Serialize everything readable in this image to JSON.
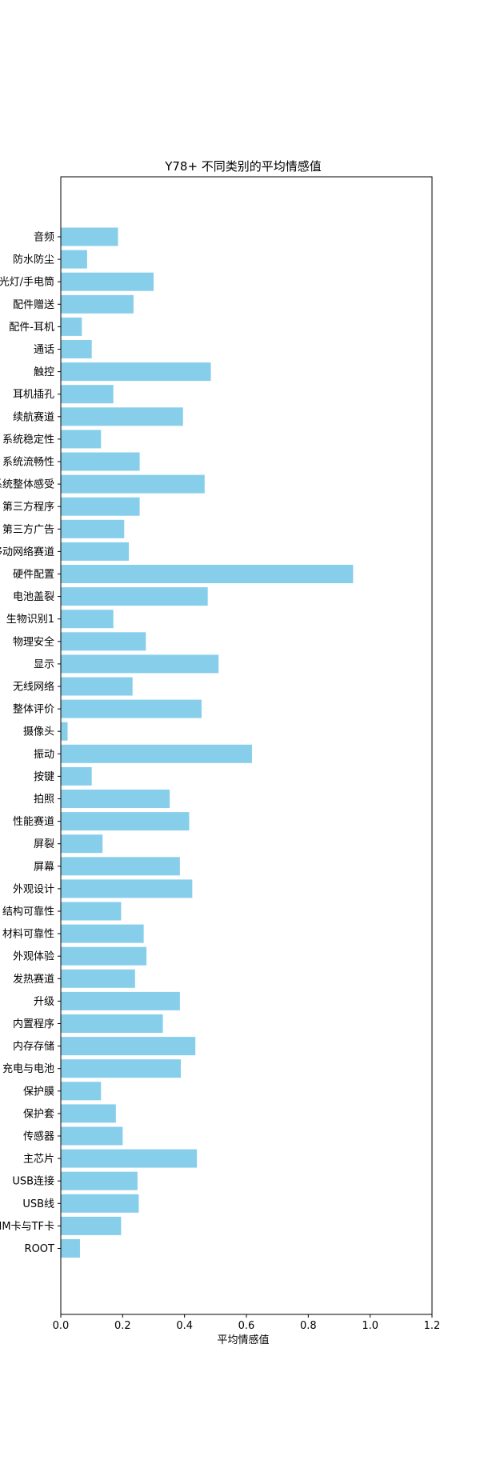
{
  "chart_data": {
    "type": "bar",
    "orientation": "horizontal",
    "title": "Y78+ 不同类别的平均情感值",
    "xlabel": "平均情感值",
    "ylabel": "",
    "xlim": [
      0.0,
      1.2
    ],
    "xticks": [
      "0.0",
      "0.2",
      "0.4",
      "0.6",
      "0.8",
      "1.0",
      "1.2"
    ],
    "grid": false,
    "bar_color": "#87ceeb",
    "categories": [
      "音频",
      "防水防尘",
      "闪光灯/手电筒",
      "配件赠送",
      "配件-耳机",
      "通话",
      "触控",
      "耳机插孔",
      "续航赛道",
      "系统稳定性",
      "系统流畅性",
      "系统整体感受",
      "第三方程序",
      "第三方广告",
      "移动网络赛道",
      "硬件配置",
      "电池盖裂",
      "生物识别1",
      "物理安全",
      "显示",
      "无线网络",
      "整体评价",
      "摄像头",
      "振动",
      "按键",
      "拍照",
      "性能赛道",
      "屏裂",
      "屏幕",
      "外观设计",
      "结构可靠性",
      "材料可靠性",
      "外观体验",
      "发热赛道",
      "升级",
      "内置程序",
      "内存存储",
      "充电与电池",
      "保护膜",
      "保护套",
      "传感器",
      "主芯片",
      "USB连接",
      "USB线",
      "SIM卡与TF卡",
      "ROOT"
    ],
    "values": [
      0.185,
      0.085,
      0.3,
      0.235,
      0.068,
      0.1,
      0.485,
      0.17,
      0.395,
      0.13,
      0.255,
      0.465,
      0.255,
      0.205,
      0.22,
      0.945,
      0.475,
      0.17,
      0.275,
      0.51,
      0.232,
      0.455,
      0.022,
      0.618,
      0.1,
      0.352,
      0.415,
      0.135,
      0.385,
      0.425,
      0.195,
      0.268,
      0.277,
      0.24,
      0.385,
      0.33,
      0.435,
      0.388,
      0.13,
      0.178,
      0.2,
      0.44,
      0.248,
      0.252,
      0.195,
      0.062
    ]
  }
}
